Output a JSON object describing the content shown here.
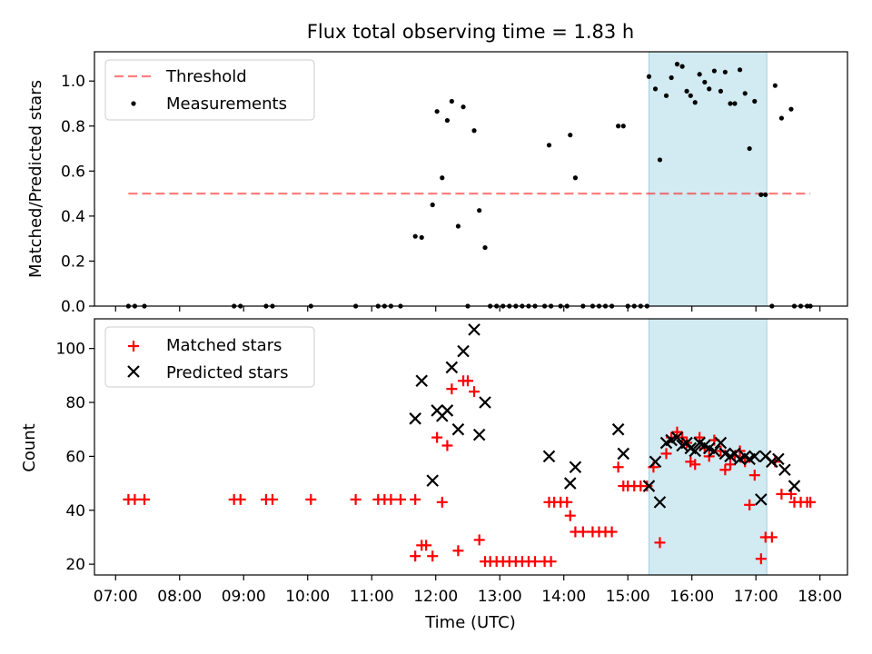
{
  "figure": {
    "title": "Flux total observing time = 1.83 h",
    "xlabel": "Time (UTC)",
    "x_ticks": [
      "07:00",
      "08:00",
      "09:00",
      "10:00",
      "11:00",
      "12:00",
      "13:00",
      "14:00",
      "15:00",
      "16:00",
      "17:00",
      "18:00"
    ],
    "x_tick_hours": [
      7,
      8,
      9,
      10,
      11,
      12,
      13,
      14,
      15,
      16,
      17,
      18
    ],
    "x_range": [
      6.67,
      18.43
    ],
    "highlight_span": [
      15.33,
      17.17
    ],
    "highlight_color": "#add8e6"
  },
  "chart_data": [
    {
      "type": "scatter",
      "ylabel": "Matched/Predicted stars",
      "ylim": [
        0,
        1.13
      ],
      "y_ticks": [
        0.0,
        0.2,
        0.4,
        0.6,
        0.8,
        1.0
      ],
      "y_tick_labels": [
        "0.0",
        "0.2",
        "0.4",
        "0.6",
        "0.8",
        "1.0"
      ],
      "legend_position": "top-left",
      "threshold": {
        "name": "Threshold",
        "y": 0.5,
        "x_range": [
          7.2,
          17.85
        ],
        "color": "#ff0000",
        "opacity": 0.5
      },
      "series": [
        {
          "name": "Measurements",
          "color": "#000000",
          "points": [
            [
              7.2,
              0
            ],
            [
              7.3,
              0
            ],
            [
              7.45,
              0
            ],
            [
              8.85,
              0
            ],
            [
              8.95,
              0
            ],
            [
              9.35,
              0
            ],
            [
              9.45,
              0
            ],
            [
              10.05,
              0
            ],
            [
              10.75,
              0
            ],
            [
              11.1,
              0
            ],
            [
              11.2,
              0
            ],
            [
              11.3,
              0
            ],
            [
              11.45,
              0
            ],
            [
              11.68,
              0.31
            ],
            [
              11.78,
              0.305
            ],
            [
              11.95,
              0.45
            ],
            [
              12.02,
              0.865
            ],
            [
              12.1,
              0.57
            ],
            [
              12.18,
              0.825
            ],
            [
              12.25,
              0.91
            ],
            [
              12.35,
              0.355
            ],
            [
              12.43,
              0.885
            ],
            [
              12.5,
              0
            ],
            [
              12.6,
              0.78
            ],
            [
              12.68,
              0.425
            ],
            [
              12.77,
              0.26
            ],
            [
              12.85,
              0
            ],
            [
              12.95,
              0
            ],
            [
              13.05,
              0
            ],
            [
              13.15,
              0
            ],
            [
              13.25,
              0
            ],
            [
              13.35,
              0
            ],
            [
              13.45,
              0
            ],
            [
              13.55,
              0
            ],
            [
              13.7,
              0
            ],
            [
              13.8,
              0
            ],
            [
              13.77,
              0.715
            ],
            [
              13.95,
              0
            ],
            [
              14.05,
              0
            ],
            [
              14.1,
              0.76
            ],
            [
              14.18,
              0.57
            ],
            [
              14.3,
              0
            ],
            [
              14.45,
              0
            ],
            [
              14.55,
              0
            ],
            [
              14.65,
              0
            ],
            [
              14.75,
              0
            ],
            [
              14.85,
              0.8
            ],
            [
              14.93,
              0.8
            ],
            [
              15.0,
              0
            ],
            [
              15.1,
              0
            ],
            [
              15.2,
              0
            ],
            [
              15.3,
              0
            ],
            [
              15.33,
              1.02
            ],
            [
              15.43,
              0.965
            ],
            [
              15.5,
              0.65
            ],
            [
              15.6,
              0.935
            ],
            [
              15.68,
              1.015
            ],
            [
              15.77,
              1.075
            ],
            [
              15.85,
              1.065
            ],
            [
              15.92,
              0.955
            ],
            [
              15.98,
              0.935
            ],
            [
              16.05,
              0.905
            ],
            [
              16.12,
              1.03
            ],
            [
              16.2,
              0.995
            ],
            [
              16.27,
              0.965
            ],
            [
              16.35,
              1.045
            ],
            [
              16.45,
              0.955
            ],
            [
              16.52,
              1.04
            ],
            [
              16.6,
              0.9
            ],
            [
              16.67,
              0.9
            ],
            [
              16.75,
              1.05
            ],
            [
              16.83,
              0.945
            ],
            [
              16.9,
              0.7
            ],
            [
              16.98,
              0.91
            ],
            [
              17.08,
              0.495
            ],
            [
              17.15,
              0.495
            ],
            [
              17.25,
              0
            ],
            [
              17.3,
              0.98
            ],
            [
              17.4,
              0.835
            ],
            [
              17.55,
              0.875
            ],
            [
              17.6,
              0
            ],
            [
              17.7,
              0
            ],
            [
              17.8,
              0
            ],
            [
              17.85,
              0
            ]
          ]
        }
      ]
    },
    {
      "type": "scatter",
      "ylabel": "Count",
      "ylim": [
        16,
        111
      ],
      "y_ticks": [
        20,
        40,
        60,
        80,
        100
      ],
      "y_tick_labels": [
        "20",
        "40",
        "60",
        "80",
        "100"
      ],
      "legend_position": "top-left",
      "series": [
        {
          "name": "Matched stars",
          "color": "#ff0000",
          "marker": "plus",
          "points": [
            [
              7.2,
              44
            ],
            [
              7.3,
              44
            ],
            [
              7.45,
              44
            ],
            [
              8.85,
              44
            ],
            [
              8.95,
              44
            ],
            [
              9.35,
              44
            ],
            [
              9.45,
              44
            ],
            [
              10.05,
              44
            ],
            [
              10.75,
              44
            ],
            [
              11.1,
              44
            ],
            [
              11.2,
              44
            ],
            [
              11.3,
              44
            ],
            [
              11.45,
              44
            ],
            [
              11.68,
              44
            ],
            [
              11.68,
              23
            ],
            [
              11.78,
              27
            ],
            [
              11.85,
              27
            ],
            [
              11.95,
              23
            ],
            [
              12.02,
              67
            ],
            [
              12.1,
              43
            ],
            [
              12.18,
              64
            ],
            [
              12.25,
              85
            ],
            [
              12.35,
              25
            ],
            [
              12.43,
              88
            ],
            [
              12.5,
              88
            ],
            [
              12.6,
              84
            ],
            [
              12.68,
              29
            ],
            [
              12.77,
              21
            ],
            [
              12.85,
              21
            ],
            [
              12.95,
              21
            ],
            [
              13.05,
              21
            ],
            [
              13.15,
              21
            ],
            [
              13.25,
              21
            ],
            [
              13.35,
              21
            ],
            [
              13.45,
              21
            ],
            [
              13.55,
              21
            ],
            [
              13.7,
              21
            ],
            [
              13.8,
              21
            ],
            [
              13.77,
              43
            ],
            [
              13.85,
              43
            ],
            [
              13.95,
              43
            ],
            [
              14.05,
              43
            ],
            [
              14.1,
              38
            ],
            [
              14.18,
              32
            ],
            [
              14.3,
              32
            ],
            [
              14.45,
              32
            ],
            [
              14.55,
              32
            ],
            [
              14.65,
              32
            ],
            [
              14.75,
              32
            ],
            [
              14.85,
              56
            ],
            [
              14.93,
              49
            ],
            [
              15.0,
              49
            ],
            [
              15.1,
              49
            ],
            [
              15.2,
              49
            ],
            [
              15.3,
              49
            ],
            [
              15.4,
              56
            ],
            [
              15.5,
              28
            ],
            [
              15.6,
              61
            ],
            [
              15.68,
              67
            ],
            [
              15.77,
              69
            ],
            [
              15.85,
              67
            ],
            [
              15.92,
              65
            ],
            [
              15.98,
              58
            ],
            [
              16.05,
              57
            ],
            [
              16.12,
              67
            ],
            [
              16.2,
              63
            ],
            [
              16.27,
              60
            ],
            [
              16.35,
              66
            ],
            [
              16.45,
              62
            ],
            [
              16.52,
              55
            ],
            [
              16.6,
              57
            ],
            [
              16.67,
              60
            ],
            [
              16.75,
              62
            ],
            [
              16.83,
              58
            ],
            [
              16.9,
              42
            ],
            [
              16.98,
              53
            ],
            [
              17.08,
              22
            ],
            [
              17.15,
              30
            ],
            [
              17.25,
              30
            ],
            [
              17.3,
              58
            ],
            [
              17.4,
              46
            ],
            [
              17.55,
              46
            ],
            [
              17.6,
              43
            ],
            [
              17.7,
              43
            ],
            [
              17.8,
              43
            ],
            [
              17.85,
              43
            ]
          ]
        },
        {
          "name": "Predicted stars",
          "color": "#000000",
          "marker": "x",
          "points": [
            [
              11.68,
              74
            ],
            [
              11.78,
              88
            ],
            [
              11.95,
              51
            ],
            [
              12.02,
              77
            ],
            [
              12.1,
              75
            ],
            [
              12.18,
              77
            ],
            [
              12.25,
              93
            ],
            [
              12.35,
              70
            ],
            [
              12.43,
              99
            ],
            [
              12.6,
              107
            ],
            [
              12.68,
              68
            ],
            [
              12.77,
              80
            ],
            [
              13.77,
              60
            ],
            [
              14.1,
              50
            ],
            [
              14.18,
              56
            ],
            [
              14.85,
              70
            ],
            [
              14.93,
              61
            ],
            [
              15.33,
              49
            ],
            [
              15.43,
              58
            ],
            [
              15.5,
              43
            ],
            [
              15.6,
              65
            ],
            [
              15.68,
              66
            ],
            [
              15.77,
              67
            ],
            [
              15.85,
              64
            ],
            [
              15.92,
              65
            ],
            [
              15.98,
              63
            ],
            [
              16.05,
              62
            ],
            [
              16.12,
              65
            ],
            [
              16.2,
              64
            ],
            [
              16.27,
              63
            ],
            [
              16.35,
              62
            ],
            [
              16.45,
              65
            ],
            [
              16.52,
              61
            ],
            [
              16.6,
              60
            ],
            [
              16.67,
              61
            ],
            [
              16.75,
              59
            ],
            [
              16.83,
              60
            ],
            [
              16.9,
              59
            ],
            [
              16.98,
              60
            ],
            [
              17.08,
              44
            ],
            [
              17.15,
              60
            ],
            [
              17.25,
              58
            ],
            [
              17.35,
              59
            ],
            [
              17.45,
              55
            ],
            [
              17.6,
              49
            ]
          ]
        }
      ]
    }
  ]
}
